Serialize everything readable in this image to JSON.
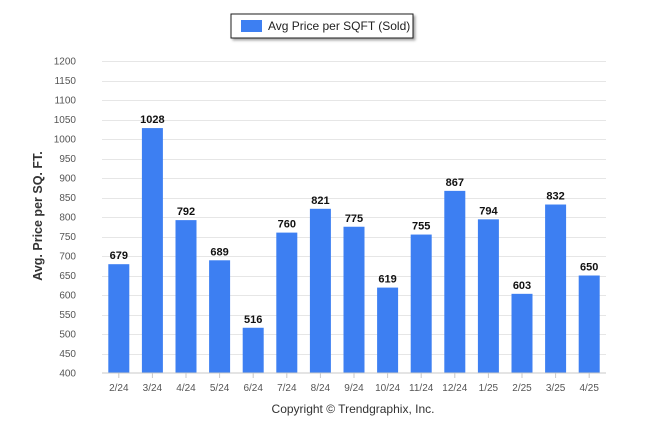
{
  "chart_data": {
    "type": "bar",
    "legend": {
      "label": "Avg Price per SQFT (Sold)",
      "placement": "top-center",
      "color": "#3d7ff2"
    },
    "ylabel": "Avg. Price per SQ. FT.",
    "xlabel": "",
    "ylim": [
      400,
      1200
    ],
    "yticks": [
      400,
      450,
      500,
      550,
      600,
      650,
      700,
      750,
      800,
      850,
      900,
      950,
      1000,
      1050,
      1100,
      1150,
      1200
    ],
    "grid": true,
    "categories": [
      "2/24",
      "3/24",
      "4/24",
      "5/24",
      "6/24",
      "7/24",
      "8/24",
      "9/24",
      "10/24",
      "11/24",
      "12/24",
      "1/25",
      "2/25",
      "3/25",
      "4/25"
    ],
    "series": [
      {
        "name": "Avg Price per SQFT (Sold)",
        "color": "#3d7ff2",
        "values": [
          679,
          1028,
          792,
          689,
          516,
          760,
          821,
          775,
          619,
          755,
          867,
          794,
          603,
          832,
          650
        ]
      }
    ],
    "data_labels": true
  },
  "footer": {
    "copyright": "Copyright © Trendgraphix, Inc."
  }
}
